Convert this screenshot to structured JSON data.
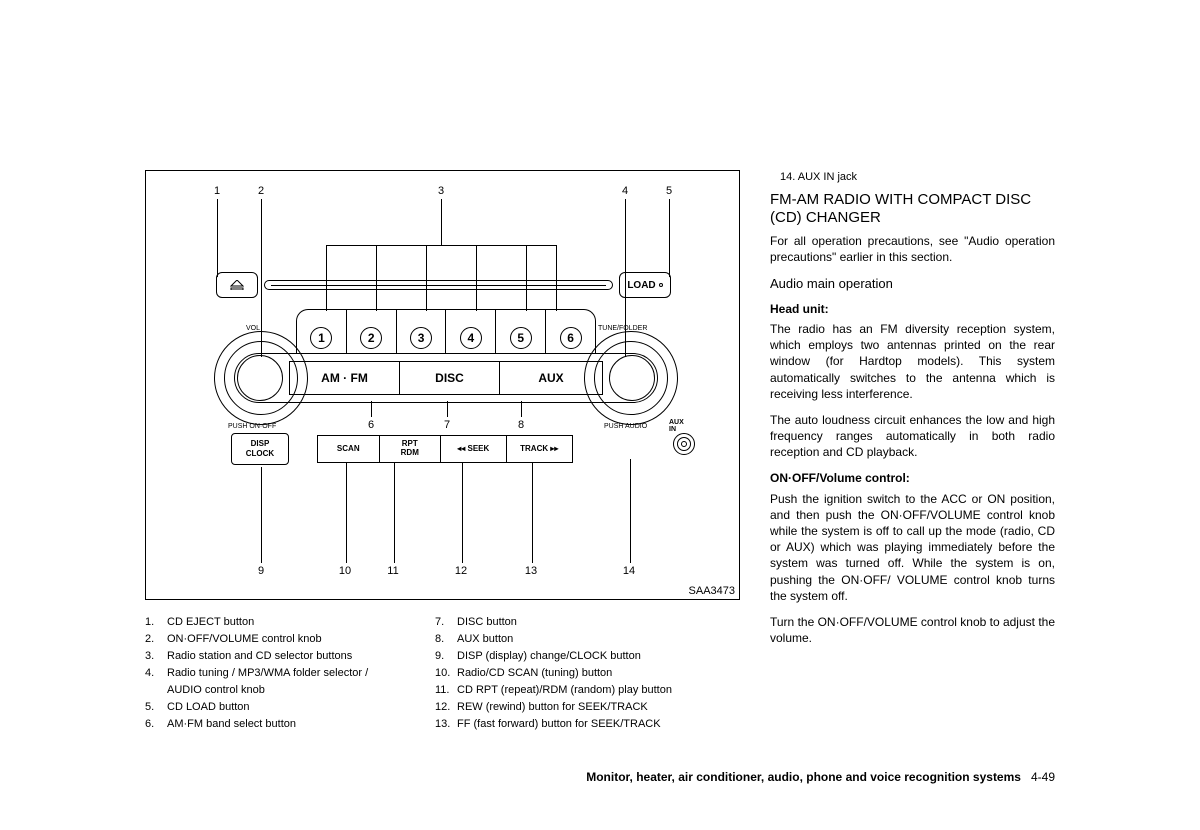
{
  "diagram": {
    "code": "SAA3473",
    "buttons": {
      "load": "LOAD",
      "amfm": "AM · FM",
      "disc": "DISC",
      "aux": "AUX",
      "disp1": "DISP",
      "disp2": "CLOCK",
      "scan": "SCAN",
      "rpt1": "RPT",
      "rpt2": "RDM",
      "seek": "◂◂ SEEK",
      "track": "TRACK ▸▸",
      "auxin": "AUX IN"
    },
    "presets": [
      "1",
      "2",
      "3",
      "4",
      "5",
      "6"
    ],
    "knob_left_top": "VOL",
    "knob_left_bottom": "PUSH ON·OFF",
    "knob_right_top": "TUNE/FOLDER",
    "knob_right_bottom": "PUSH AUDIO",
    "callouts_top": [
      "1",
      "2",
      "3",
      "4",
      "5"
    ],
    "callouts_mid": [
      "6",
      "7",
      "8"
    ],
    "callouts_bot": [
      "9",
      "10",
      "11",
      "12",
      "13",
      "14"
    ]
  },
  "legend1": [
    {
      "n": "1.",
      "t": "CD EJECT button"
    },
    {
      "n": "2.",
      "t": "ON·OFF/VOLUME control knob"
    },
    {
      "n": "3.",
      "t": "Radio station and CD selector buttons"
    },
    {
      "n": "4.",
      "t": "Radio tuning / MP3/WMA folder selector / AUDIO control knob"
    },
    {
      "n": "5.",
      "t": "CD LOAD button"
    },
    {
      "n": "6.",
      "t": "AM·FM band select button"
    }
  ],
  "legend2": [
    {
      "n": "7.",
      "t": "DISC button"
    },
    {
      "n": "8.",
      "t": "AUX button"
    },
    {
      "n": "9.",
      "t": "DISP (display) change/CLOCK button"
    },
    {
      "n": "10.",
      "t": "Radio/CD SCAN (tuning) button"
    },
    {
      "n": "11.",
      "t": "CD RPT (repeat)/RDM (random) play button"
    },
    {
      "n": "12.",
      "t": "REW (rewind) button for SEEK/TRACK"
    },
    {
      "n": "13.",
      "t": "FF (fast forward) button for SEEK/TRACK"
    }
  ],
  "right": {
    "item14": "14.   AUX IN jack",
    "title": "FM-AM RADIO WITH COMPACT DISC (CD) CHANGER",
    "p1": "For all operation precautions, see \"Audio operation precautions\" earlier in this section.",
    "h3": "Audio main operation",
    "hd1": "Head unit:",
    "p2": "The radio has an FM diversity reception system, which employs two antennas printed on the rear window (for Hardtop models). This system automatically switches to the antenna which is receiving less interference.",
    "p3": "The auto loudness circuit enhances the low and high frequency ranges automatically in both radio reception and CD playback.",
    "hd2": "ON·OFF/Volume control:",
    "p4": "Push the ignition switch to the ACC or ON position, and then push the ON·OFF/VOLUME control knob while the system is off to call up the mode (radio, CD or AUX) which was playing immediately before the system was turned off. While the system is on, pushing the ON·OFF/ VOLUME control knob turns the system off.",
    "p5": "Turn the ON·OFF/VOLUME control knob to adjust the volume."
  },
  "footer": {
    "section": "Monitor, heater, air conditioner, audio, phone and voice recognition systems",
    "page": "4-49"
  }
}
